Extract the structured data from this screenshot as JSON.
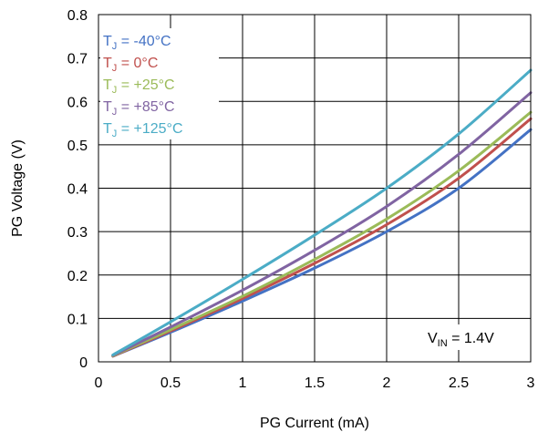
{
  "chart_data": {
    "type": "line",
    "xlabel": "PG Current (mA)",
    "ylabel": "PG Voltage (V)",
    "xlim": [
      0,
      3
    ],
    "ylim": [
      0,
      0.8
    ],
    "xticks": [
      0,
      0.5,
      1,
      1.5,
      2,
      2.5,
      3
    ],
    "yticks": [
      0,
      0.1,
      0.2,
      0.3,
      0.4,
      0.5,
      0.6,
      0.7,
      0.8
    ],
    "xtick_labels": [
      "0",
      "0.5",
      "1",
      "1.5",
      "2",
      "2.5",
      "3"
    ],
    "ytick_labels": [
      "0",
      "0.1",
      "0.2",
      "0.3",
      "0.4",
      "0.5",
      "0.6",
      "0.7",
      "0.8"
    ],
    "grid": true,
    "legend_position": "top-left",
    "annotation": {
      "main": "V",
      "sub": "IN",
      "tail": " = 1.4V"
    },
    "series": [
      {
        "name": "T_J = -40°C",
        "label_main": "T",
        "label_sub": "J",
        "label_tail": " = -40°C",
        "color": "#4472C4",
        "x": [
          0.1,
          0.5,
          1.0,
          1.5,
          2.0,
          2.5,
          3.0
        ],
        "y": [
          0.013,
          0.068,
          0.14,
          0.216,
          0.3,
          0.4,
          0.535
        ]
      },
      {
        "name": "T_J = 0°C",
        "label_main": "T",
        "label_sub": "J",
        "label_tail": " = 0°C",
        "color": "#C0504D",
        "x": [
          0.1,
          0.5,
          1.0,
          1.5,
          2.0,
          2.5,
          3.0
        ],
        "y": [
          0.013,
          0.071,
          0.146,
          0.227,
          0.316,
          0.423,
          0.56
        ]
      },
      {
        "name": "T_J = +25°C",
        "label_main": "T",
        "label_sub": "J",
        "label_tail": " = +25°C",
        "color": "#9BBB59",
        "x": [
          0.1,
          0.5,
          1.0,
          1.5,
          2.0,
          2.5,
          3.0
        ],
        "y": [
          0.014,
          0.074,
          0.151,
          0.236,
          0.329,
          0.44,
          0.575
        ]
      },
      {
        "name": "T_J = +85°C",
        "label_main": "T",
        "label_sub": "J",
        "label_tail": " = +85°C",
        "color": "#8064A2",
        "x": [
          0.1,
          0.5,
          1.0,
          1.5,
          2.0,
          2.5,
          3.0
        ],
        "y": [
          0.015,
          0.08,
          0.165,
          0.257,
          0.358,
          0.478,
          0.62
        ]
      },
      {
        "name": "T_J = +125°C",
        "label_main": "T",
        "label_sub": "J",
        "label_tail": " = +125°C",
        "color": "#4BACC6",
        "x": [
          0.1,
          0.5,
          1.0,
          1.5,
          2.0,
          2.5,
          3.0
        ],
        "y": [
          0.016,
          0.092,
          0.19,
          0.292,
          0.4,
          0.525,
          0.672
        ]
      }
    ]
  }
}
